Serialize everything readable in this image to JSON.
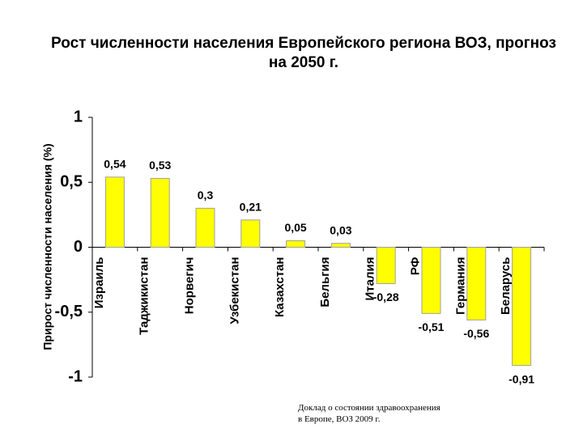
{
  "chart_data": {
    "type": "bar",
    "title": "Рост численности населения Европейского региона ВОЗ, прогноз на 2050 г.",
    "ylabel": "Прирост численности населения (%)",
    "xlabel": "",
    "categories": [
      "Израиль",
      "Таджикистан",
      "Норвегич",
      "Узбекистан",
      "Казахстан",
      "Бельгия",
      "Италия",
      "РФ",
      "Германия",
      "Беларусь"
    ],
    "values": [
      0.54,
      0.53,
      0.3,
      0.21,
      0.05,
      0.03,
      -0.28,
      -0.51,
      -0.56,
      -0.91
    ],
    "value_labels": [
      "0,54",
      "0,53",
      "0,3",
      "0,21",
      "0,05",
      "0,03",
      "-0,28",
      "-0,51",
      "-0,56",
      "-0,91"
    ],
    "yticks": [
      1,
      0.5,
      0,
      -0.5,
      -1
    ],
    "ytick_labels": [
      "1",
      "0,5",
      "0",
      "-0,5",
      "-1"
    ],
    "ylim": [
      -1,
      1
    ],
    "grid": false,
    "bar_color": "#ffff00",
    "bar_edge_color": "#a0a0a0"
  },
  "source_note": {
    "line1": "Доклад о состоянии здравоохранения",
    "line2": "в Европе, ВОЗ 2009 г."
  }
}
